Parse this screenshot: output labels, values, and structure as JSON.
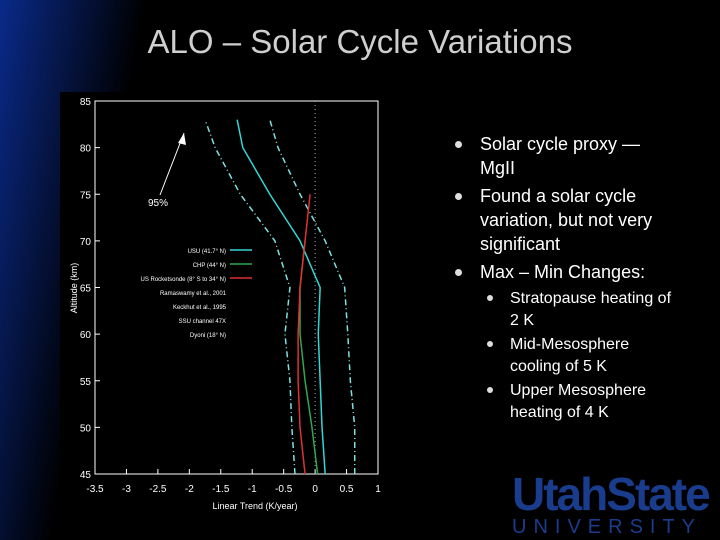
{
  "title": "ALO – Solar Cycle Variations",
  "bullets": [
    {
      "text": "Solar cycle proxy — MgII"
    },
    {
      "text": "Found a solar cycle variation, but not very significant"
    },
    {
      "text": "Max – Min Changes:",
      "sub": [
        "Stratopause heating of 2 K",
        "Mid-Mesosphere cooling of 5 K",
        "Upper Mesosphere heating of 4 K"
      ]
    }
  ],
  "logo": {
    "line1": "UtahState",
    "line2": "UNIVERSITY"
  },
  "chart_data": {
    "type": "line",
    "x_label": "Linear Trend (K/year)",
    "y_label": "Altitude (km)",
    "annotation": "95%",
    "xlim": [
      -3.5,
      1
    ],
    "ylim": [
      45,
      85
    ],
    "xticks": [
      -3.5,
      -3,
      -2.5,
      -2,
      -1.5,
      -1,
      -0.5,
      0,
      0.5,
      1
    ],
    "yticks": [
      45,
      50,
      55,
      60,
      65,
      70,
      75,
      80,
      85
    ],
    "altitudes": [
      45,
      50,
      55,
      60,
      65,
      70,
      75,
      80,
      83
    ],
    "series": [
      {
        "name": "USU (41.7° N)",
        "color": "#33d6d6",
        "values": [
          0.16,
          0.11,
          0.08,
          0.05,
          0.08,
          -0.24,
          -0.72,
          -1.15,
          -1.24
        ]
      },
      {
        "name": "CHP (44° N)",
        "color": "#2fa84f",
        "values": [
          0.04,
          -0.05,
          -0.16,
          -0.24,
          -0.24,
          -0.16,
          null,
          null,
          null
        ]
      },
      {
        "name": "US Rocketsonde (8° S to 34° N)",
        "color": "#e03030",
        "values": [
          -0.16,
          -0.24,
          -0.27,
          -0.27,
          -0.24,
          -0.16,
          -0.08,
          null,
          null
        ]
      }
    ],
    "bounds": {
      "color": "#7fe0e0",
      "lower": [
        -0.32,
        -0.37,
        -0.4,
        -0.48,
        -0.4,
        -0.64,
        -1.19,
        -1.59,
        -1.75
      ],
      "upper": [
        0.63,
        0.63,
        0.56,
        0.52,
        0.47,
        0.16,
        -0.24,
        -0.59,
        -0.72
      ]
    },
    "legend_extra": [
      "Ramaswamy et al., 2001",
      "Keckhut et al., 1995",
      "SSU channel 47X",
      "Dyoni (18° N)"
    ]
  }
}
